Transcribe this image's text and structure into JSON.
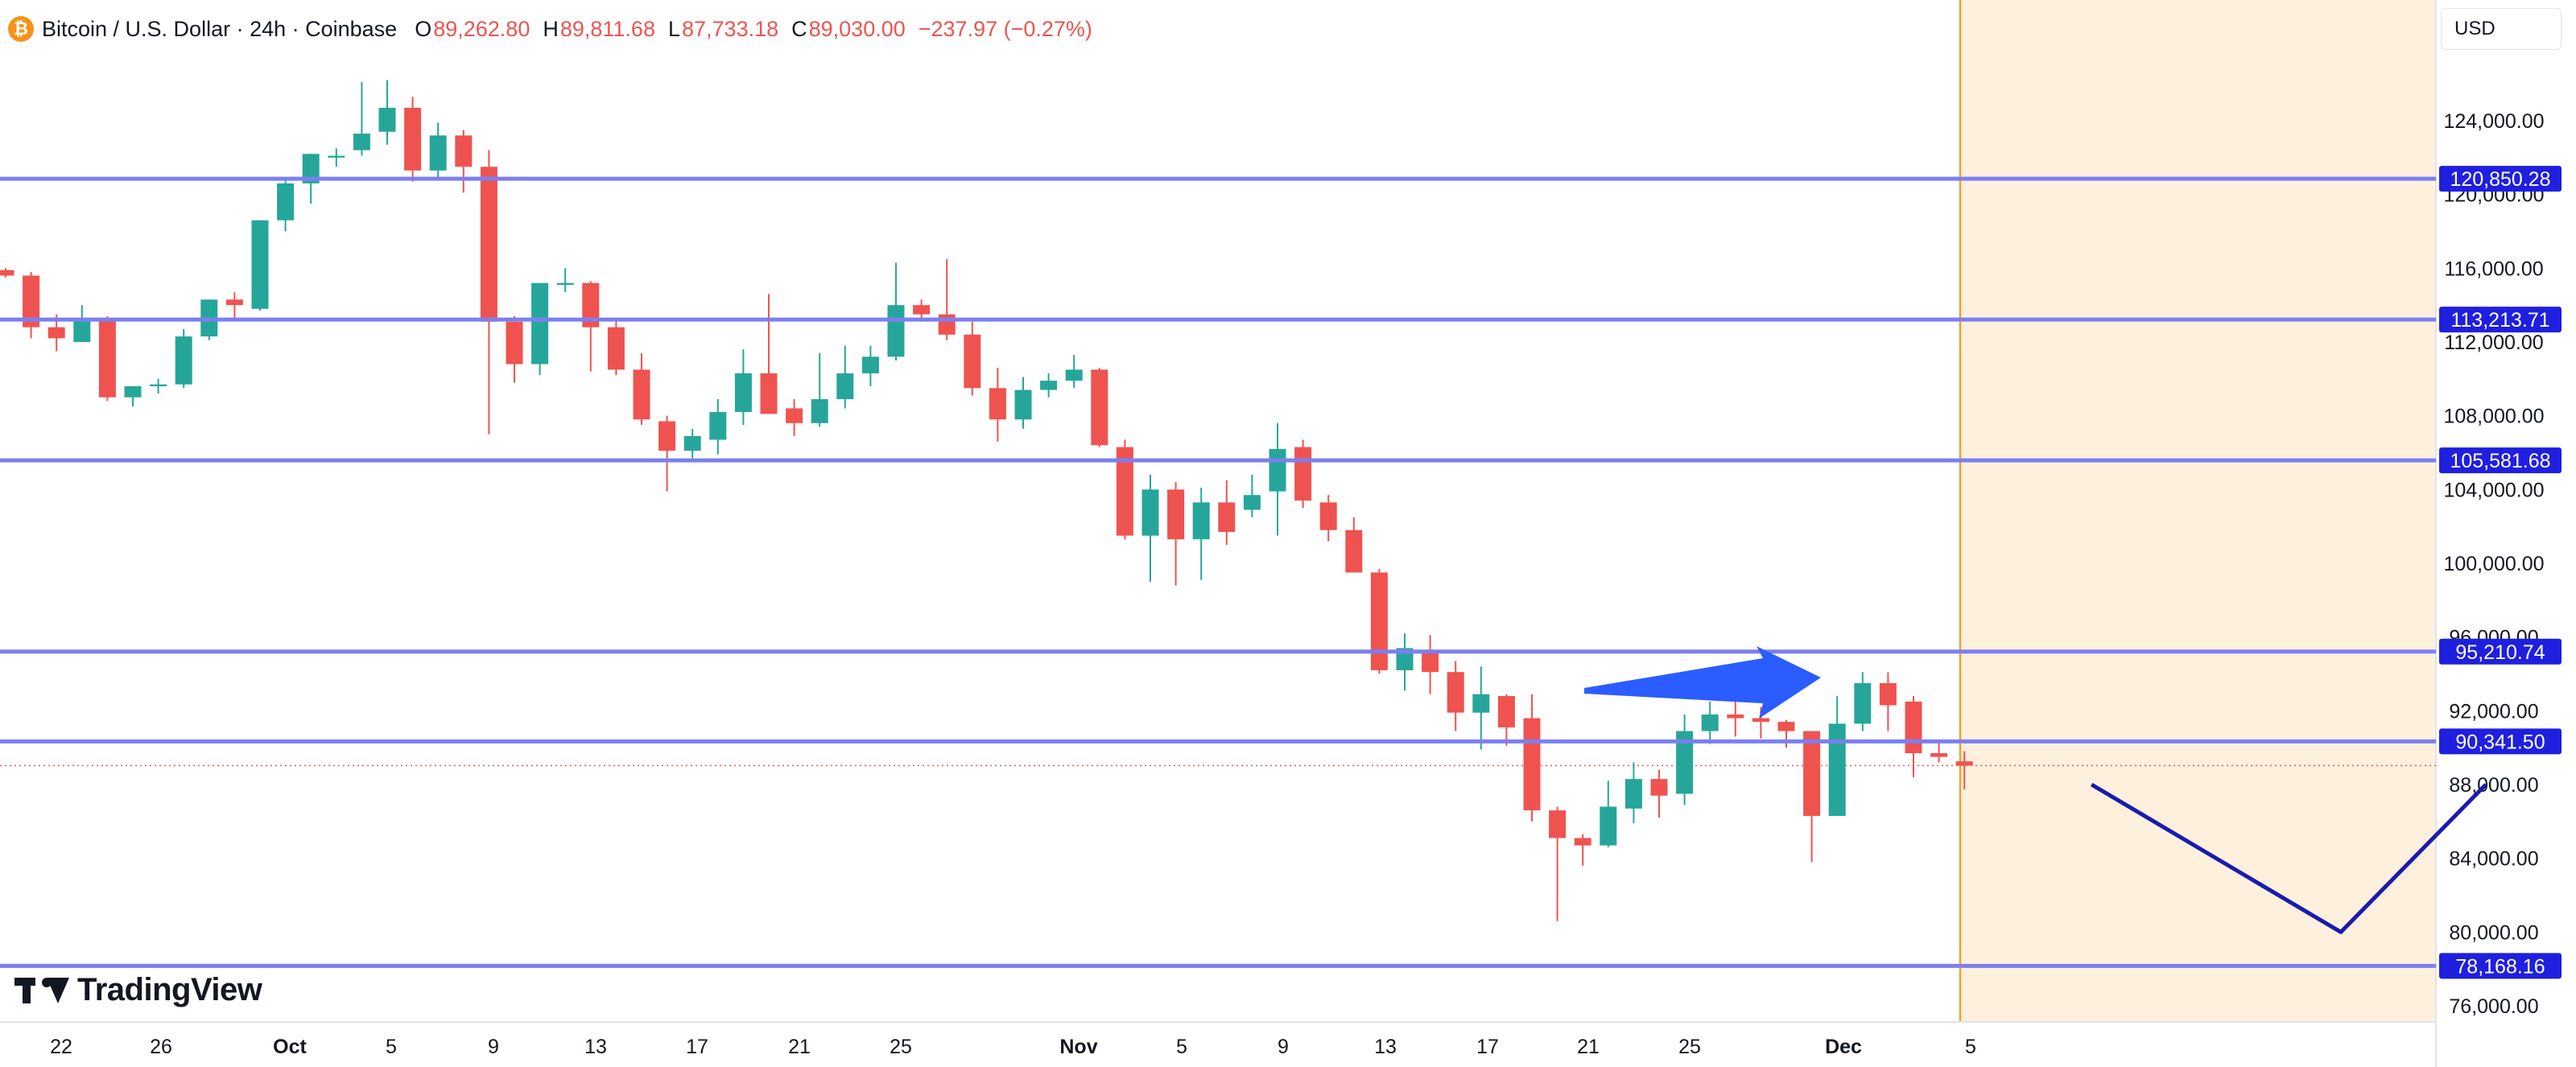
{
  "header": {
    "icon_symbol": "₿",
    "title": "Bitcoin / U.S. Dollar · 24h · Coinbase",
    "open_label": "O",
    "open_value": "89,262.80",
    "high_label": "H",
    "high_value": "89,811.68",
    "low_label": "L",
    "low_value": "87,733.18",
    "close_label": "C",
    "close_value": "89,030.00",
    "change": "−237.97 (−0.27%)"
  },
  "currency_label": "USD",
  "branding": "TradingView",
  "colors": {
    "up": "#26a69a",
    "down": "#ef5350",
    "level_line": "#7b7ff0",
    "level_badge": "#1f1fe0",
    "highlight_zone": "#fdf0dc",
    "zone_border": "#f0a030",
    "arrow": "#2a5cff",
    "projection": "#1a1ab0"
  },
  "chart_data": {
    "type": "candlestick",
    "title": "Bitcoin / U.S. Dollar · 24h · Coinbase",
    "y_range": [
      75000,
      126500
    ],
    "y_ticks": [
      "124,000.00",
      "120,000.00",
      "116,000.00",
      "112,000.00",
      "108,000.00",
      "104,000.00",
      "100,000.00",
      "96,000.00",
      "92,000.00",
      "88,000.00",
      "84,000.00",
      "80,000.00",
      "76,000.00"
    ],
    "x_ticks": [
      {
        "label": "22",
        "bold": false
      },
      {
        "label": "26",
        "bold": false
      },
      {
        "label": "Oct",
        "bold": true
      },
      {
        "label": "5",
        "bold": false
      },
      {
        "label": "9",
        "bold": false
      },
      {
        "label": "13",
        "bold": false
      },
      {
        "label": "17",
        "bold": false
      },
      {
        "label": "21",
        "bold": false
      },
      {
        "label": "25",
        "bold": false
      },
      {
        "label": "Nov",
        "bold": true
      },
      {
        "label": "5",
        "bold": false
      },
      {
        "label": "9",
        "bold": false
      },
      {
        "label": "13",
        "bold": false
      },
      {
        "label": "17",
        "bold": false
      },
      {
        "label": "21",
        "bold": false
      },
      {
        "label": "25",
        "bold": false
      },
      {
        "label": "Dec",
        "bold": true
      },
      {
        "label": "5",
        "bold": false
      }
    ],
    "horizontal_levels": [
      "120,850.28",
      "113,213.71",
      "105,581.68",
      "95,210.74",
      "90,341.50",
      "78,168.16"
    ],
    "current_price": 89030,
    "candles": [
      [
        115900,
        116000,
        115500,
        115600
      ],
      [
        115600,
        115800,
        112200,
        112800
      ],
      [
        112800,
        113500,
        111500,
        112200
      ],
      [
        112000,
        114000,
        112000,
        113300
      ],
      [
        113200,
        113400,
        108800,
        109000
      ],
      [
        109000,
        109500,
        108500,
        109600
      ],
      [
        109600,
        110000,
        109200,
        109700
      ],
      [
        109700,
        112700,
        109500,
        112300
      ],
      [
        112300,
        114300,
        112100,
        114300
      ],
      [
        114300,
        114700,
        113300,
        114000
      ],
      [
        113800,
        118600,
        113700,
        118600
      ],
      [
        118600,
        120800,
        118000,
        120600
      ],
      [
        120600,
        122200,
        119500,
        122200
      ],
      [
        122000,
        122500,
        121500,
        122100
      ],
      [
        122400,
        126100,
        122100,
        123300
      ],
      [
        123400,
        126200,
        122700,
        124700
      ],
      [
        124700,
        125300,
        120700,
        121300
      ],
      [
        121300,
        123900,
        120900,
        123200
      ],
      [
        123200,
        123500,
        120100,
        121500
      ],
      [
        121500,
        122400,
        107000,
        113100
      ],
      [
        113100,
        113400,
        109800,
        110800
      ],
      [
        110800,
        115200,
        110200,
        115200
      ],
      [
        115100,
        116000,
        114700,
        115200
      ],
      [
        115200,
        115300,
        110400,
        112800
      ],
      [
        112800,
        113300,
        110200,
        110500
      ],
      [
        110500,
        111400,
        107500,
        107800
      ],
      [
        107700,
        108000,
        103900,
        106100
      ],
      [
        106100,
        107300,
        105700,
        106900
      ],
      [
        106700,
        108900,
        105900,
        108200
      ],
      [
        108200,
        111600,
        107500,
        110300
      ],
      [
        110300,
        114600,
        108400,
        108100
      ],
      [
        108400,
        108900,
        106900,
        107600
      ],
      [
        107600,
        111400,
        107400,
        108900
      ],
      [
        108900,
        111800,
        108400,
        110300
      ],
      [
        110300,
        111800,
        109600,
        111200
      ],
      [
        111200,
        116300,
        111000,
        114000
      ],
      [
        114000,
        114300,
        113100,
        113500
      ],
      [
        113500,
        116500,
        112100,
        112400
      ],
      [
        112400,
        113100,
        109100,
        109500
      ],
      [
        109500,
        110600,
        106600,
        107800
      ],
      [
        107800,
        110100,
        107300,
        109400
      ],
      [
        109400,
        110300,
        109000,
        109900
      ],
      [
        109900,
        111300,
        109500,
        110500
      ],
      [
        110500,
        110600,
        106300,
        106400
      ],
      [
        106300,
        106700,
        101300,
        101500
      ],
      [
        101500,
        104800,
        99000,
        104000
      ],
      [
        104000,
        104400,
        98800,
        101300
      ],
      [
        101300,
        104100,
        99100,
        103300
      ],
      [
        103300,
        104500,
        101000,
        101700
      ],
      [
        102900,
        104800,
        102500,
        103700
      ],
      [
        103900,
        107600,
        101500,
        106200
      ],
      [
        106300,
        106700,
        103000,
        103400
      ],
      [
        103300,
        103700,
        101200,
        101800
      ],
      [
        101800,
        102500,
        99700,
        99500
      ],
      [
        99500,
        99700,
        94000,
        94200
      ],
      [
        94200,
        96200,
        93100,
        95400
      ],
      [
        95300,
        96100,
        92900,
        94100
      ],
      [
        94100,
        94700,
        90900,
        91900
      ],
      [
        91900,
        94400,
        89900,
        92900
      ],
      [
        92800,
        92900,
        90100,
        91100
      ],
      [
        91600,
        92900,
        86000,
        86600
      ],
      [
        86600,
        86800,
        80600,
        85100
      ],
      [
        85100,
        85300,
        83600,
        84700
      ],
      [
        84700,
        88200,
        84600,
        86800
      ],
      [
        86700,
        89200,
        85900,
        88300
      ],
      [
        88300,
        88800,
        86200,
        87400
      ],
      [
        87500,
        91800,
        86900,
        90900
      ],
      [
        90900,
        92500,
        90200,
        91800
      ],
      [
        91800,
        93000,
        90600,
        91600
      ],
      [
        91600,
        92200,
        90500,
        91400
      ],
      [
        91400,
        91500,
        90000,
        90900
      ],
      [
        90900,
        90900,
        83800,
        86300
      ],
      [
        86300,
        92800,
        86300,
        91300
      ],
      [
        91300,
        94100,
        90900,
        93500
      ],
      [
        93500,
        94100,
        90900,
        92300
      ],
      [
        92500,
        92800,
        88400,
        89700
      ],
      [
        89700,
        90300,
        89200,
        89500
      ],
      [
        89260,
        89810,
        87730,
        89030
      ]
    ]
  },
  "annotations": {
    "arrow": "blue arrow pointing right toward 95,210.74 resistance",
    "projection_path": [
      [
        5,
        88000
      ],
      [
        14.8,
        80000
      ],
      [
        20.5,
        88000
      ]
    ]
  }
}
